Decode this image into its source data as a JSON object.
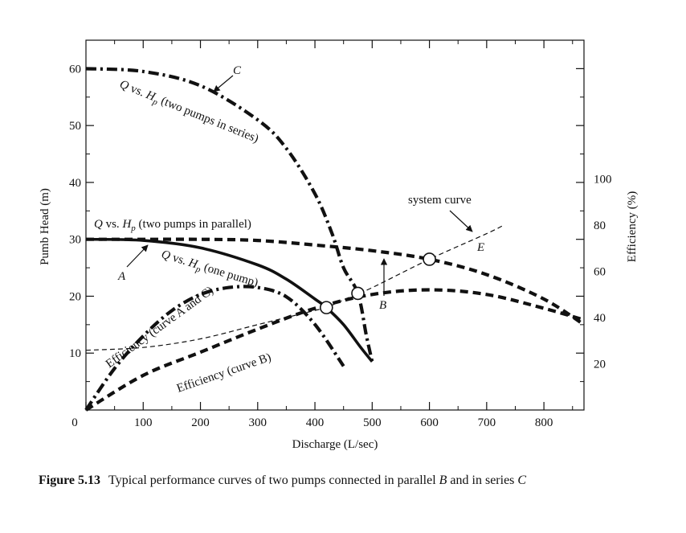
{
  "chart_data": {
    "type": "line",
    "xlabel": "Discharge (L/sec)",
    "ylabel": "Pumb Head (m)",
    "y2label": "Efficiency (%)",
    "xlim": [
      0,
      870
    ],
    "ylim": [
      0,
      65
    ],
    "y2lim": [
      0,
      160
    ],
    "x_ticks": [
      0,
      100,
      200,
      300,
      400,
      500,
      600,
      700,
      800
    ],
    "y_ticks": [
      10,
      20,
      30,
      40,
      50,
      60
    ],
    "y2_ticks": [
      20,
      40,
      60,
      80,
      100
    ],
    "grid": false,
    "series": [
      {
        "key": "one_pump",
        "axis": "head",
        "style": "solid",
        "points": [
          [
            0,
            30
          ],
          [
            100,
            29.8
          ],
          [
            200,
            28.5
          ],
          [
            300,
            25.5
          ],
          [
            350,
            23
          ],
          [
            400,
            19.5
          ],
          [
            420,
            18
          ],
          [
            450,
            15
          ],
          [
            480,
            11
          ],
          [
            500,
            8.5
          ]
        ]
      },
      {
        "key": "two_parallel",
        "axis": "head",
        "style": "dashed",
        "points": [
          [
            0,
            30
          ],
          [
            100,
            30
          ],
          [
            200,
            30
          ],
          [
            300,
            29.8
          ],
          [
            400,
            29
          ],
          [
            500,
            28
          ],
          [
            600,
            26.5
          ],
          [
            700,
            23.8
          ],
          [
            800,
            19.5
          ],
          [
            870,
            15
          ]
        ]
      },
      {
        "key": "two_series",
        "axis": "head",
        "style": "dashdot",
        "points": [
          [
            0,
            60
          ],
          [
            100,
            59.5
          ],
          [
            200,
            57
          ],
          [
            300,
            51
          ],
          [
            350,
            46
          ],
          [
            400,
            38
          ],
          [
            430,
            31
          ],
          [
            450,
            25
          ],
          [
            475,
            20.5
          ],
          [
            490,
            13
          ],
          [
            500,
            8.5
          ]
        ]
      },
      {
        "key": "system_curve",
        "axis": "head",
        "style": "thin-dashed",
        "points": [
          [
            0,
            10.5
          ],
          [
            100,
            11
          ],
          [
            200,
            12.5
          ],
          [
            300,
            15
          ],
          [
            400,
            17.5
          ],
          [
            420,
            18
          ],
          [
            475,
            20.5
          ],
          [
            500,
            21.5
          ],
          [
            600,
            26.5
          ],
          [
            700,
            31
          ],
          [
            730,
            32.5
          ]
        ]
      },
      {
        "key": "efficiency_AC",
        "axis": "efficiency",
        "style": "dashdot",
        "points": [
          [
            0,
            0
          ],
          [
            50,
            18
          ],
          [
            100,
            32
          ],
          [
            150,
            43
          ],
          [
            200,
            50
          ],
          [
            250,
            53
          ],
          [
            300,
            53
          ],
          [
            350,
            49
          ],
          [
            400,
            37
          ],
          [
            450,
            19
          ]
        ]
      },
      {
        "key": "efficiency_B",
        "axis": "efficiency",
        "style": "dashed",
        "points": [
          [
            0,
            0
          ],
          [
            100,
            15
          ],
          [
            200,
            25
          ],
          [
            300,
            35
          ],
          [
            400,
            44
          ],
          [
            500,
            50
          ],
          [
            600,
            52
          ],
          [
            700,
            50
          ],
          [
            800,
            44
          ],
          [
            870,
            39
          ]
        ]
      }
    ],
    "operating_points": [
      [
        420,
        18
      ],
      [
        475,
        20.5
      ],
      [
        600,
        26.5
      ]
    ],
    "labels": {
      "two_series": "Q vs. Hp (two pumps in series)",
      "two_parallel": "Q vs. Hp (two pumps in parallel)",
      "one_pump": "Q vs. Hp (one pump)",
      "system": "system curve",
      "eff_ac": "Efficiency (curve A and C)",
      "eff_b": "Efficiency (curve B)",
      "A": "A",
      "B": "B",
      "C": "C",
      "E": "E"
    }
  },
  "caption": {
    "number": "Figure 5.13",
    "text_before_B": "Typical performance curves of two pumps connected in parallel ",
    "B": "B",
    "text_before_C": " and in series ",
    "C": "C"
  }
}
